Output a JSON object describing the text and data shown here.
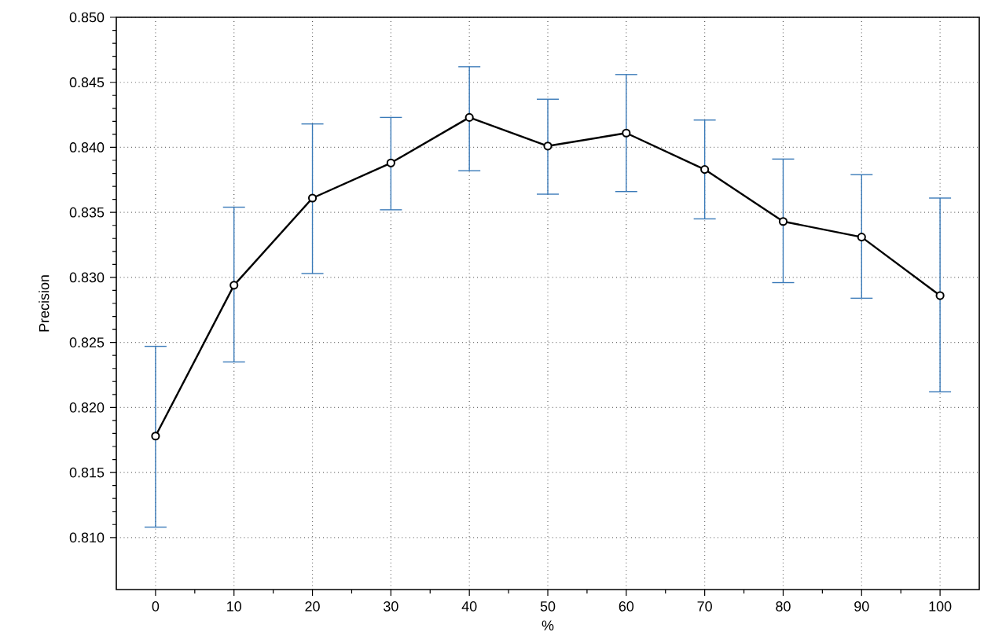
{
  "chart_data": {
    "type": "line",
    "xlabel": "%",
    "ylabel": "Precision",
    "x": [
      0,
      10,
      20,
      30,
      40,
      50,
      60,
      70,
      80,
      90,
      100
    ],
    "series": [
      {
        "color": "#000000",
        "values": [
          0.8178,
          0.8294,
          0.8361,
          0.8388,
          0.8423,
          0.8401,
          0.8411,
          0.8383,
          0.8343,
          0.8331,
          0.8286
        ],
        "errors": [
          [
            0.8108,
            0.8247
          ],
          [
            0.8235,
            0.8354
          ],
          [
            0.8303,
            0.8418
          ],
          [
            0.8352,
            0.8423
          ],
          [
            0.8382,
            0.8462
          ],
          [
            0.8364,
            0.8437
          ],
          [
            0.8366,
            0.8456
          ],
          [
            0.8345,
            0.8421
          ],
          [
            0.8296,
            0.8391
          ],
          [
            0.8284,
            0.8379
          ],
          [
            0.8212,
            0.8361
          ]
        ]
      }
    ],
    "xlim": [
      -5,
      105
    ],
    "ylim": [
      0.806,
      0.85
    ],
    "xticks": [
      0,
      10,
      20,
      30,
      40,
      50,
      60,
      70,
      80,
      90,
      100
    ],
    "yticks": [
      {
        "value": 0.81,
        "label": "0.810"
      },
      {
        "value": 0.815,
        "label": "0.815"
      },
      {
        "value": 0.82,
        "label": "0.820"
      },
      {
        "value": 0.825,
        "label": "0.825"
      },
      {
        "value": 0.83,
        "label": "0.830"
      },
      {
        "value": 0.835,
        "label": "0.835"
      },
      {
        "value": 0.84,
        "label": "0.840"
      },
      {
        "value": 0.845,
        "label": "0.845"
      },
      {
        "value": 0.85,
        "label": "0.850"
      }
    ],
    "grid": true,
    "marker": "circle",
    "line_style": "solid"
  }
}
